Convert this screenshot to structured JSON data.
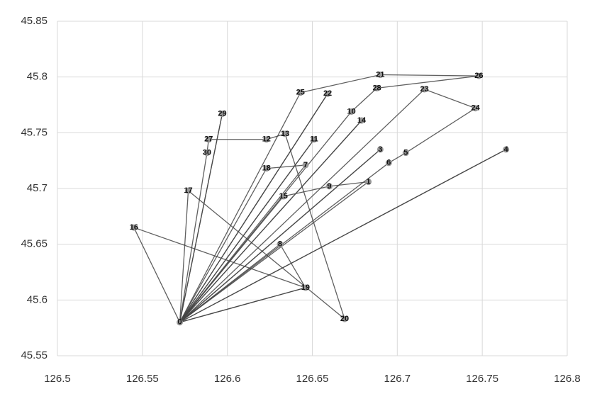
{
  "chart_data": {
    "type": "scatter",
    "labels": [
      "0",
      "1",
      "3",
      "4",
      "5",
      "6",
      "7",
      "8",
      "9",
      "10",
      "11",
      "12",
      "13",
      "14",
      "15",
      "16",
      "17",
      "18",
      "19",
      "20",
      "21",
      "22",
      "23",
      "24",
      "25",
      "26",
      "27",
      "28",
      "29",
      "30"
    ],
    "x": [
      126.572,
      126.683,
      126.69,
      126.764,
      126.705,
      126.695,
      126.646,
      126.631,
      126.66,
      126.673,
      126.651,
      126.623,
      126.634,
      126.679,
      126.633,
      126.545,
      126.577,
      126.623,
      126.646,
      126.669,
      126.69,
      126.659,
      126.716,
      126.746,
      126.643,
      126.748,
      126.589,
      126.688,
      126.597,
      126.588
    ],
    "series": [
      {
        "color": "#999999",
        "values": [
          45.58,
          45.706,
          45.735,
          45.735,
          45.732,
          45.723,
          45.721,
          45.65,
          45.702,
          45.769,
          45.744,
          45.744,
          45.749,
          45.761,
          45.693,
          45.665,
          45.698,
          45.718,
          45.611,
          45.583,
          45.802,
          45.785,
          45.789,
          45.772,
          45.786,
          45.801,
          45.744,
          45.79,
          45.767,
          45.732
        ]
      }
    ],
    "routes": [
      [
        "0",
        "16",
        "19",
        "0"
      ],
      [
        "0",
        "17",
        "20",
        "13",
        "12",
        "27",
        "30",
        "0"
      ],
      [
        "0",
        "29",
        "0"
      ],
      [
        "0",
        "25",
        "21",
        "26",
        "28",
        "10",
        "0"
      ],
      [
        "0",
        "22",
        "0"
      ],
      [
        "0",
        "14",
        "0"
      ],
      [
        "0",
        "11",
        "0"
      ],
      [
        "0",
        "18",
        "7",
        "0"
      ],
      [
        "0",
        "15",
        "9",
        "1",
        "0"
      ],
      [
        "0",
        "3",
        "0"
      ],
      [
        "0",
        "6",
        "5",
        "24",
        "23",
        "0"
      ],
      [
        "0",
        "4",
        "0"
      ],
      [
        "0",
        "8",
        "19",
        "0"
      ]
    ],
    "line_color": "#444444",
    "xlim": [
      126.5,
      126.8
    ],
    "xticks": [
      126.5,
      126.55,
      126.6,
      126.65,
      126.7,
      126.75,
      126.8
    ],
    "ylim": [
      45.55,
      45.85
    ],
    "yticks": [
      45.55,
      45.6,
      45.65,
      45.7,
      45.75,
      45.8,
      45.85
    ],
    "grid": true
  }
}
